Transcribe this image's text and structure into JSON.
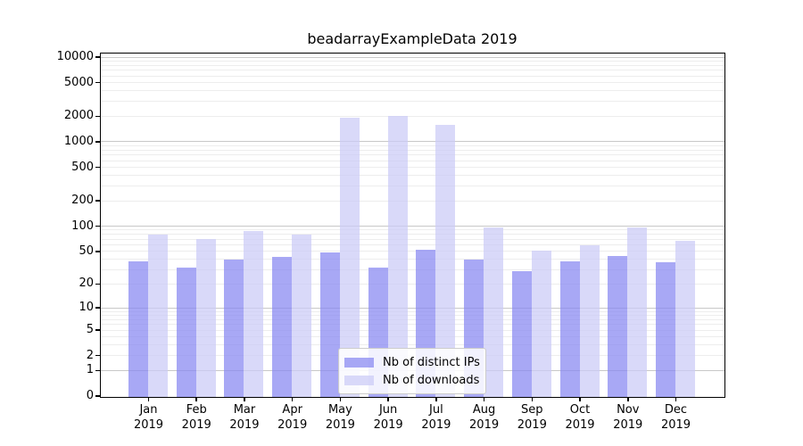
{
  "title": "beadarrayExampleData 2019",
  "chart_data": {
    "type": "bar",
    "title": "beadarrayExampleData 2019",
    "categories": [
      "Jan",
      "Feb",
      "Mar",
      "Apr",
      "May",
      "Jun",
      "Jul",
      "Aug",
      "Sep",
      "Oct",
      "Nov",
      "Dec"
    ],
    "year_label": "2019",
    "series": [
      {
        "name": "Nb of distinct IPs",
        "color": "rgba(134,134,241,0.72)",
        "values": [
          38,
          32,
          40,
          43,
          49,
          32,
          53,
          40,
          29,
          38,
          45,
          37
        ]
      },
      {
        "name": "Nb of downloads",
        "color": "rgba(203,203,246,0.72)",
        "values": [
          80,
          71,
          89,
          80,
          1950,
          2070,
          1600,
          98,
          52,
          60,
          99,
          67
        ]
      }
    ],
    "y_scale": "log1p",
    "y_max": 10000,
    "y_ticks": [
      0,
      1,
      2,
      5,
      10,
      20,
      50,
      100,
      200,
      500,
      1000,
      2000,
      5000,
      10000
    ],
    "grid": true,
    "legend_position": "bottom-center-inside",
    "colors": {
      "grid_major": "#c8c8c8",
      "grid_minor": "#ededed",
      "axis": "#000000",
      "background": "#ffffff"
    }
  }
}
